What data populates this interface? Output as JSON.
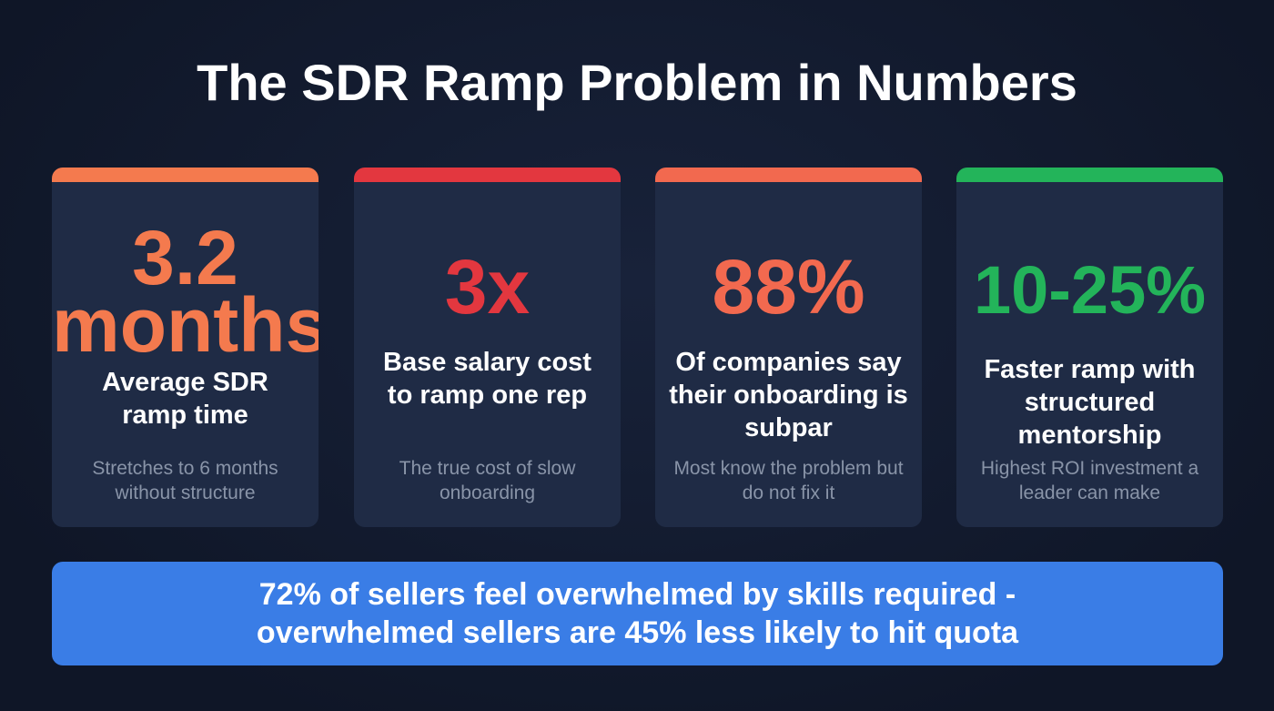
{
  "title": "The SDR Ramp Problem in Numbers",
  "cards": [
    {
      "value": "3.2 months",
      "label": "Average SDR ramp time",
      "sub": "Stretches to 6 months without structure",
      "color": "#f47a4e"
    },
    {
      "value": "3x",
      "label": "Base salary cost to ramp one rep",
      "sub": "The true cost of slow onboarding",
      "color": "#e3373f"
    },
    {
      "value": "88%",
      "label": "Of companies say their onboarding is subpar",
      "sub": "Most know the problem but do not fix it",
      "color": "#f2694f"
    },
    {
      "value": "10-25%",
      "label": "Faster ramp with structured mentorship",
      "sub": "Highest ROI investment a leader can make",
      "color": "#23b45a"
    }
  ],
  "banner": {
    "line1": "72% of sellers feel overwhelmed by skills required -",
    "line2": "overwhelmed sellers are 45% less likely to hit quota"
  }
}
